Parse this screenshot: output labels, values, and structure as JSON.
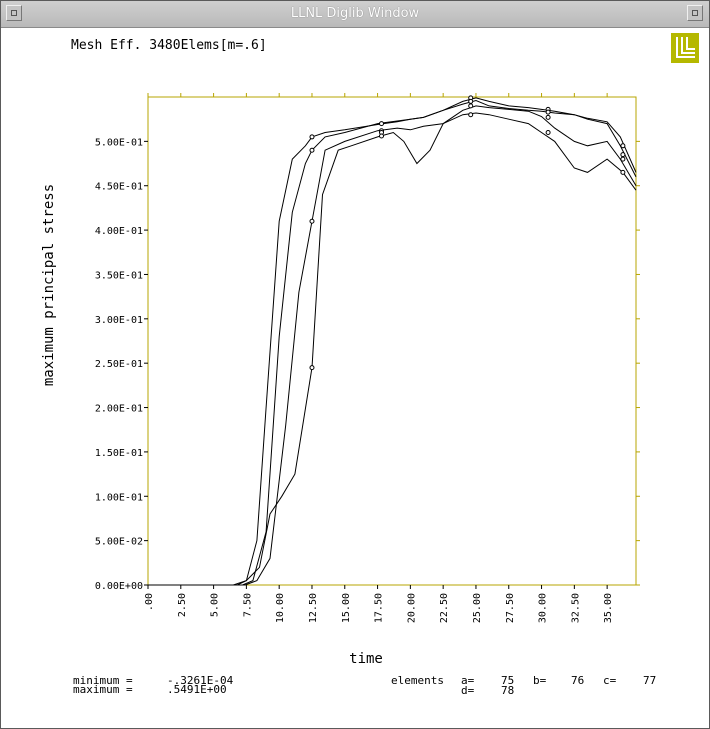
{
  "window": {
    "title": "LLNL Diglib Window"
  },
  "plot_title": "Mesh Eff. 3480Elems[m=.6]",
  "logo": {
    "text": "LLNL",
    "color": "#b5b800"
  },
  "colors": {
    "frame": "#b7a400",
    "trace": "#000000"
  },
  "stats": {
    "minimum_label": "minimum  =",
    "minimum_value": "-.3261E-04",
    "maximum_label": "maximum  =",
    "maximum_value": ".5491E+00"
  },
  "elements": {
    "label": "elements",
    "a_label": "a=",
    "a_value": "75",
    "b_label": "b=",
    "b_value": "76",
    "c_label": "c=",
    "c_value": "77",
    "d_label": "d=",
    "d_value": "78"
  },
  "chart_data": {
    "type": "line",
    "title": "Mesh Eff. 3480Elems[m=.6]",
    "xlabel": "time",
    "ylabel": "maximum principal stress",
    "xlim": [
      0,
      37.2
    ],
    "ylim": [
      0,
      0.55
    ],
    "grid": false,
    "x_ticks": [
      0,
      2.5,
      5,
      7.5,
      10,
      12.5,
      15,
      17.5,
      20,
      22.5,
      25,
      27.5,
      30,
      32.5,
      35
    ],
    "x_tick_labels": [
      ".00",
      "2.50",
      "5.00",
      "7.50",
      "10.00",
      "12.50",
      "15.00",
      "17.50",
      "20.00",
      "22.50",
      "25.00",
      "27.50",
      "30.00",
      "32.50",
      "35.00"
    ],
    "y_ticks": [
      0,
      0.05,
      0.1,
      0.15,
      0.2,
      0.25,
      0.3,
      0.35,
      0.4,
      0.45,
      0.5
    ],
    "y_tick_labels": [
      "0.00E+00",
      "5.00E-02",
      "1.00E-01",
      "1.50E-01",
      "2.00E-01",
      "2.50E-01",
      "3.00E-01",
      "3.50E-01",
      "4.00E-01",
      "4.50E-01",
      "5.00E-01"
    ],
    "series": [
      {
        "name": "a",
        "x": [
          0,
          6.8,
          7.5,
          8.3,
          9,
          10,
          11,
          12,
          12.5,
          13.5,
          15,
          17.5,
          19,
          20,
          21,
          22.5,
          24,
          25,
          26,
          27.5,
          29,
          30,
          31,
          32.5,
          33.5,
          35,
          36,
          37.2
        ],
        "y": [
          0,
          0,
          0.005,
          0.05,
          0.2,
          0.41,
          0.48,
          0.495,
          0.505,
          0.51,
          0.513,
          0.519,
          0.522,
          0.525,
          0.527,
          0.535,
          0.545,
          0.549,
          0.545,
          0.54,
          0.538,
          0.536,
          0.534,
          0.53,
          0.526,
          0.522,
          0.505,
          0.465
        ]
      },
      {
        "name": "b",
        "x": [
          0,
          7.2,
          8,
          9,
          10,
          11,
          12,
          12.5,
          13.5,
          15,
          17.5,
          19,
          20,
          21,
          22.5,
          24,
          25,
          26,
          27.5,
          29,
          30,
          31,
          32.5,
          33.5,
          35,
          36,
          37.2
        ],
        "y": [
          0,
          0,
          0.005,
          0.06,
          0.28,
          0.42,
          0.475,
          0.49,
          0.505,
          0.51,
          0.52,
          0.523,
          0.525,
          0.527,
          0.535,
          0.542,
          0.546,
          0.54,
          0.537,
          0.535,
          0.534,
          0.532,
          0.53,
          0.525,
          0.52,
          0.495,
          0.46
        ]
      },
      {
        "name": "c",
        "x": [
          0,
          7.4,
          8.3,
          9.3,
          10.5,
          11.5,
          12.5,
          13.5,
          15,
          17.5,
          19,
          20,
          21,
          22.5,
          24,
          25,
          26,
          27.5,
          29,
          30,
          31,
          32.5,
          33.5,
          35,
          36,
          37.2
        ],
        "y": [
          0,
          0,
          0.005,
          0.03,
          0.18,
          0.33,
          0.41,
          0.49,
          0.5,
          0.512,
          0.515,
          0.513,
          0.517,
          0.52,
          0.535,
          0.54,
          0.538,
          0.536,
          0.534,
          0.528,
          0.515,
          0.5,
          0.495,
          0.5,
          0.48,
          0.45
        ]
      },
      {
        "name": "d",
        "x": [
          0,
          6.5,
          7.5,
          8.5,
          9.3,
          10.2,
          11.2,
          12.5,
          13.3,
          14.5,
          15.5,
          17.5,
          18.7,
          19.5,
          20.5,
          21.5,
          22.5,
          24,
          25,
          26,
          27.5,
          29,
          30,
          31,
          32.5,
          33.5,
          35,
          36.2,
          37.2
        ],
        "y": [
          0,
          0,
          0.005,
          0.02,
          0.08,
          0.1,
          0.125,
          0.245,
          0.44,
          0.49,
          0.495,
          0.505,
          0.51,
          0.5,
          0.475,
          0.49,
          0.52,
          0.53,
          0.532,
          0.53,
          0.525,
          0.52,
          0.51,
          0.5,
          0.47,
          0.465,
          0.48,
          0.465,
          0.445
        ]
      }
    ],
    "markers": [
      {
        "x": 12.5,
        "y": 0.505
      },
      {
        "x": 12.5,
        "y": 0.49
      },
      {
        "x": 12.5,
        "y": 0.41
      },
      {
        "x": 12.5,
        "y": 0.245
      },
      {
        "x": 17.8,
        "y": 0.52
      },
      {
        "x": 17.8,
        "y": 0.512
      },
      {
        "x": 17.8,
        "y": 0.51
      },
      {
        "x": 17.8,
        "y": 0.506
      },
      {
        "x": 24.6,
        "y": 0.549
      },
      {
        "x": 24.6,
        "y": 0.545
      },
      {
        "x": 24.6,
        "y": 0.54
      },
      {
        "x": 24.6,
        "y": 0.53
      },
      {
        "x": 30.5,
        "y": 0.536
      },
      {
        "x": 30.5,
        "y": 0.533
      },
      {
        "x": 30.5,
        "y": 0.527
      },
      {
        "x": 30.5,
        "y": 0.51
      },
      {
        "x": 36.2,
        "y": 0.495
      },
      {
        "x": 36.2,
        "y": 0.485
      },
      {
        "x": 36.2,
        "y": 0.48
      },
      {
        "x": 36.2,
        "y": 0.465
      }
    ]
  }
}
